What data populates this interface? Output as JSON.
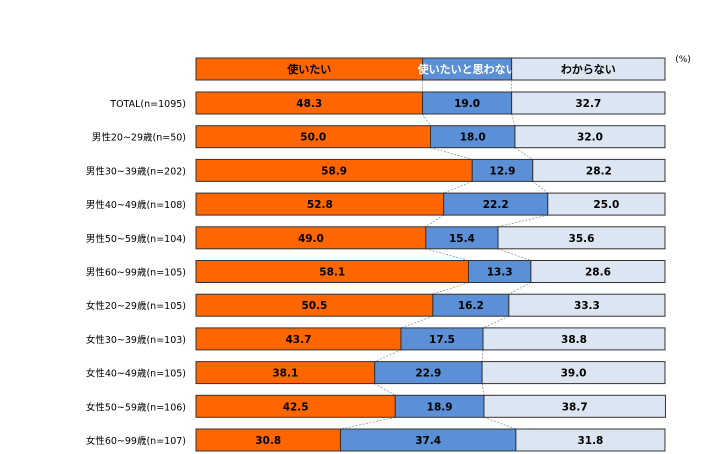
{
  "chart_data": {
    "type": "bar",
    "orientation": "horizontal",
    "stacked": true,
    "percent_stacked": true,
    "unit_label": "(%)",
    "categories": [
      "TOTAL(n=1095)",
      "男性20~29歳(n=50)",
      "男性30~39歳(n=202)",
      "男性40~49歳(n=108)",
      "男性50~59歳(n=104)",
      "男性60~99歳(n=105)",
      "女性20~29歳(n=105)",
      "女性30~39歳(n=103)",
      "女性40~49歳(n=105)",
      "女性50~59歳(n=106)",
      "女性60~99歳(n=107)"
    ],
    "series": [
      {
        "name": "使いたい",
        "color": "#ff6600",
        "values": [
          48.3,
          50.0,
          58.9,
          52.8,
          49.0,
          58.1,
          50.5,
          43.7,
          38.1,
          42.5,
          30.8
        ]
      },
      {
        "name": "使いたいと思わない",
        "color": "#5b8fd6",
        "values": [
          19.0,
          18.0,
          12.9,
          22.2,
          15.4,
          13.3,
          16.2,
          17.5,
          22.9,
          18.9,
          37.4
        ]
      },
      {
        "name": "わからない",
        "color": "#dce6f2",
        "values": [
          32.7,
          32.0,
          28.2,
          25.0,
          35.6,
          28.6,
          33.3,
          38.8,
          39.0,
          38.7,
          31.8
        ]
      }
    ],
    "value_labels": [
      [
        "48.3",
        "50.0",
        "58.9",
        "52.8",
        "49.0",
        "58.1",
        "50.5",
        "43.7",
        "38.1",
        "42.5",
        "30.8"
      ],
      [
        "19.0",
        "18.0",
        "12.9",
        "22.2",
        "15.4",
        "13.3",
        "16.2",
        "17.5",
        "22.9",
        "18.9",
        "37.4"
      ],
      [
        "32.7",
        "32.0",
        "28.2",
        "25.0",
        "35.6",
        "28.6",
        "33.3",
        "38.8",
        "39.0",
        "38.7",
        "31.8"
      ]
    ],
    "legend_position": "top",
    "series_lines": true,
    "xlim": [
      0,
      100
    ]
  }
}
